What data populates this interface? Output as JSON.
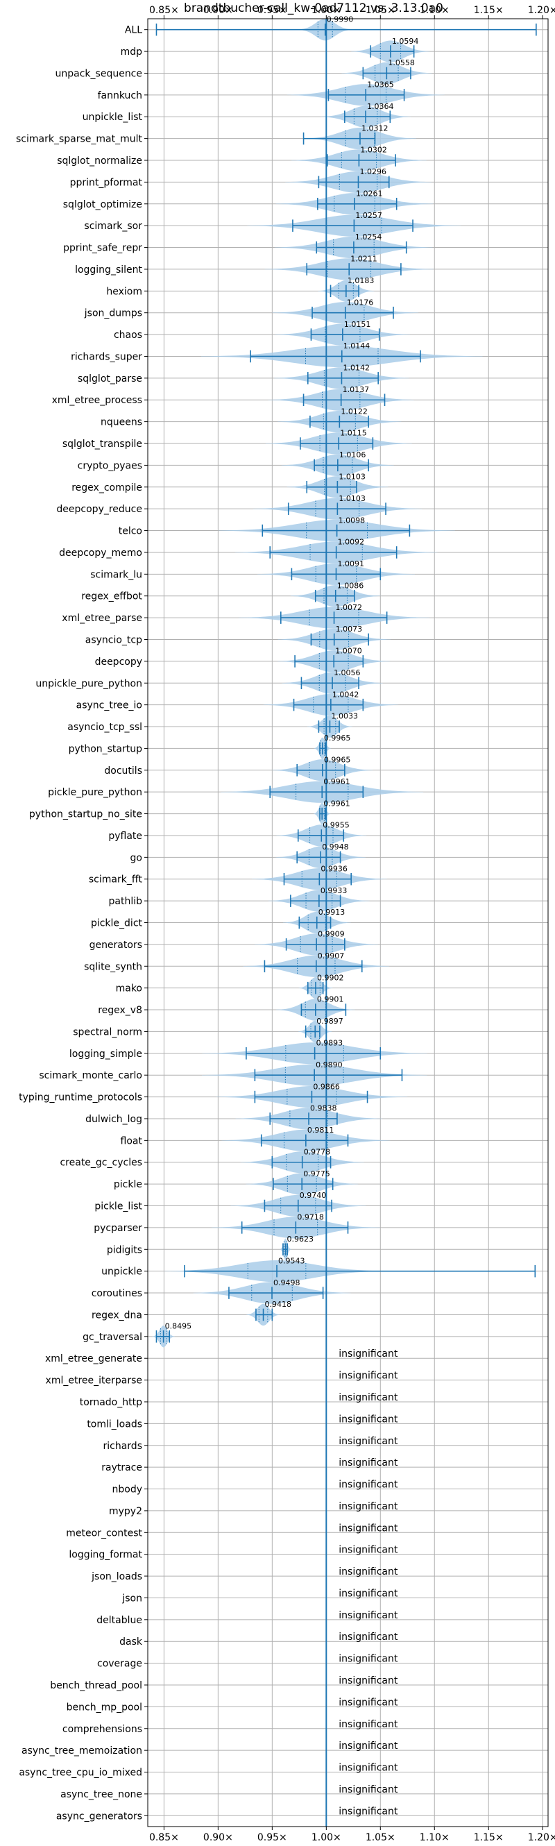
{
  "chart_data": {
    "type": "violin",
    "title": "brandtbucher-call_kw-0ad7112 vs. 3.13.0a0",
    "xlim": [
      0.835,
      1.205
    ],
    "x_ticks": [
      0.85,
      0.9,
      0.95,
      1.0,
      1.05,
      1.1,
      1.15,
      1.2
    ],
    "x_tick_labels": [
      "0.85×",
      "0.90×",
      "0.95×",
      "1.00×",
      "1.05×",
      "1.10×",
      "1.15×",
      "1.20×"
    ],
    "reference_x": 1.0,
    "grid": true,
    "colors": {
      "violin": "#a9cce9",
      "line": "#1f77b4",
      "grid": "#b0b0b0"
    },
    "insignificant_label": "insignificant",
    "significant": [
      {
        "name": "ALL",
        "mean": 0.999,
        "label": "0.9990",
        "min": 0.843,
        "max": 1.194,
        "spread": 0.01
      },
      {
        "name": "mdp",
        "mean": 1.0594,
        "label": "1.0594",
        "min": 1.041,
        "max": 1.081,
        "spread": 0.014
      },
      {
        "name": "unpack_sequence",
        "mean": 1.0558,
        "label": "1.0558",
        "min": 1.034,
        "max": 1.078,
        "spread": 0.016
      },
      {
        "name": "fannkuch",
        "mean": 1.0365,
        "label": "1.0365",
        "min": 1.002,
        "max": 1.072,
        "spread": 0.028
      },
      {
        "name": "unpickle_list",
        "mean": 1.0364,
        "label": "1.0364",
        "min": 1.017,
        "max": 1.059,
        "spread": 0.016
      },
      {
        "name": "scimark_sparse_mat_mult",
        "mean": 1.0312,
        "label": "1.0312",
        "min": 0.979,
        "max": 1.045,
        "spread": 0.02
      },
      {
        "name": "sqlglot_normalize",
        "mean": 1.0302,
        "label": "1.0302",
        "min": 1.001,
        "max": 1.064,
        "spread": 0.024
      },
      {
        "name": "pprint_pformat",
        "mean": 1.0296,
        "label": "1.0296",
        "min": 0.993,
        "max": 1.058,
        "spread": 0.026
      },
      {
        "name": "sqlglot_optimize",
        "mean": 1.0261,
        "label": "1.0261",
        "min": 0.992,
        "max": 1.065,
        "spread": 0.028
      },
      {
        "name": "scimark_sor",
        "mean": 1.0257,
        "label": "1.0257",
        "min": 0.969,
        "max": 1.08,
        "spread": 0.038
      },
      {
        "name": "pprint_safe_repr",
        "mean": 1.0254,
        "label": "1.0254",
        "min": 0.991,
        "max": 1.074,
        "spread": 0.028
      },
      {
        "name": "logging_silent",
        "mean": 1.0211,
        "label": "1.0211",
        "min": 0.982,
        "max": 1.069,
        "spread": 0.03
      },
      {
        "name": "hexiom",
        "mean": 1.0183,
        "label": "1.0183",
        "min": 1.004,
        "max": 1.03,
        "spread": 0.01
      },
      {
        "name": "json_dumps",
        "mean": 1.0176,
        "label": "1.0176",
        "min": 0.987,
        "max": 1.062,
        "spread": 0.026
      },
      {
        "name": "chaos",
        "mean": 1.0151,
        "label": "1.0151",
        "min": 0.986,
        "max": 1.049,
        "spread": 0.024
      },
      {
        "name": "richards_super",
        "mean": 1.0144,
        "label": "1.0144",
        "min": 0.93,
        "max": 1.087,
        "spread": 0.05
      },
      {
        "name": "sqlglot_parse",
        "mean": 1.0142,
        "label": "1.0142",
        "min": 0.983,
        "max": 1.048,
        "spread": 0.024
      },
      {
        "name": "xml_etree_process",
        "mean": 1.0137,
        "label": "1.0137",
        "min": 0.979,
        "max": 1.054,
        "spread": 0.026
      },
      {
        "name": "nqueens",
        "mean": 1.0122,
        "label": "1.0122",
        "min": 0.985,
        "max": 1.039,
        "spread": 0.022
      },
      {
        "name": "sqlglot_transpile",
        "mean": 1.0115,
        "label": "1.0115",
        "min": 0.976,
        "max": 1.043,
        "spread": 0.026
      },
      {
        "name": "crypto_pyaes",
        "mean": 1.0106,
        "label": "1.0106",
        "min": 0.989,
        "max": 1.039,
        "spread": 0.02
      },
      {
        "name": "regex_compile",
        "mean": 1.0103,
        "label": "1.0103",
        "min": 0.982,
        "max": 1.028,
        "spread": 0.018
      },
      {
        "name": "deepcopy_reduce",
        "mean": 1.0103,
        "label": "1.0103",
        "min": 0.965,
        "max": 1.055,
        "spread": 0.03
      },
      {
        "name": "telco",
        "mean": 1.0098,
        "label": "1.0098",
        "min": 0.941,
        "max": 1.077,
        "spread": 0.042
      },
      {
        "name": "deepcopy_memo",
        "mean": 1.0092,
        "label": "1.0092",
        "min": 0.948,
        "max": 1.065,
        "spread": 0.036
      },
      {
        "name": "scimark_lu",
        "mean": 1.0091,
        "label": "1.0091",
        "min": 0.968,
        "max": 1.05,
        "spread": 0.028
      },
      {
        "name": "regex_effbot",
        "mean": 1.0086,
        "label": "1.0086",
        "min": 0.99,
        "max": 1.026,
        "spread": 0.016
      },
      {
        "name": "xml_etree_parse",
        "mean": 1.0072,
        "label": "1.0072",
        "min": 0.958,
        "max": 1.056,
        "spread": 0.034
      },
      {
        "name": "asyncio_tcp",
        "mean": 1.0073,
        "label": "1.0073",
        "min": 0.986,
        "max": 1.039,
        "spread": 0.02
      },
      {
        "name": "deepcopy",
        "mean": 1.007,
        "label": "1.0070",
        "min": 0.971,
        "max": 1.034,
        "spread": 0.02
      },
      {
        "name": "unpickle_pure_python",
        "mean": 1.0056,
        "label": "1.0056",
        "min": 0.977,
        "max": 1.03,
        "spread": 0.018
      },
      {
        "name": "async_tree_io",
        "mean": 1.0042,
        "label": "1.0042",
        "min": 0.97,
        "max": 1.034,
        "spread": 0.024
      },
      {
        "name": "asyncio_tcp_ssl",
        "mean": 1.0033,
        "label": "1.0033",
        "min": 0.993,
        "max": 1.012,
        "spread": 0.008
      },
      {
        "name": "python_startup",
        "mean": 0.9965,
        "label": "0.9965",
        "min": 0.994,
        "max": 0.999,
        "spread": 0.003
      },
      {
        "name": "docutils",
        "mean": 0.9965,
        "label": "0.9965",
        "min": 0.973,
        "max": 1.017,
        "spread": 0.018
      },
      {
        "name": "pickle_pure_python",
        "mean": 0.9961,
        "label": "0.9961",
        "min": 0.948,
        "max": 1.034,
        "spread": 0.036
      },
      {
        "name": "python_startup_no_site",
        "mean": 0.9961,
        "label": "0.9961",
        "min": 0.994,
        "max": 0.999,
        "spread": 0.003
      },
      {
        "name": "pyflate",
        "mean": 0.9955,
        "label": "0.9955",
        "min": 0.974,
        "max": 1.016,
        "spread": 0.016
      },
      {
        "name": "go",
        "mean": 0.9948,
        "label": "0.9948",
        "min": 0.973,
        "max": 1.013,
        "spread": 0.016
      },
      {
        "name": "scimark_fft",
        "mean": 0.9936,
        "label": "0.9936",
        "min": 0.961,
        "max": 1.023,
        "spread": 0.024
      },
      {
        "name": "pathlib",
        "mean": 0.9933,
        "label": "0.9933",
        "min": 0.967,
        "max": 1.013,
        "spread": 0.018
      },
      {
        "name": "pickle_dict",
        "mean": 0.9913,
        "label": "0.9913",
        "min": 0.975,
        "max": 1.004,
        "spread": 0.012
      },
      {
        "name": "generators",
        "mean": 0.9909,
        "label": "0.9909",
        "min": 0.963,
        "max": 1.017,
        "spread": 0.022
      },
      {
        "name": "sqlite_synth",
        "mean": 0.9907,
        "label": "0.9907",
        "min": 0.943,
        "max": 1.033,
        "spread": 0.026
      },
      {
        "name": "mako",
        "mean": 0.9902,
        "label": "0.9902",
        "min": 0.983,
        "max": 0.997,
        "spread": 0.006
      },
      {
        "name": "regex_v8",
        "mean": 0.9901,
        "label": "0.9901",
        "min": 0.977,
        "max": 1.018,
        "spread": 0.014
      },
      {
        "name": "spectral_norm",
        "mean": 0.9897,
        "label": "0.9897",
        "min": 0.981,
        "max": 0.994,
        "spread": 0.006
      },
      {
        "name": "logging_simple",
        "mean": 0.9893,
        "label": "0.9893",
        "min": 0.926,
        "max": 1.05,
        "spread": 0.04
      },
      {
        "name": "scimark_monte_carlo",
        "mean": 0.989,
        "label": "0.9890",
        "min": 0.934,
        "max": 1.07,
        "spread": 0.04
      },
      {
        "name": "typing_runtime_protocols",
        "mean": 0.9866,
        "label": "0.9866",
        "min": 0.934,
        "max": 1.038,
        "spread": 0.034
      },
      {
        "name": "dulwich_log",
        "mean": 0.9838,
        "label": "0.9838",
        "min": 0.948,
        "max": 1.01,
        "spread": 0.026
      },
      {
        "name": "float",
        "mean": 0.9811,
        "label": "0.9811",
        "min": 0.94,
        "max": 1.02,
        "spread": 0.03
      },
      {
        "name": "create_gc_cycles",
        "mean": 0.9778,
        "label": "0.9778",
        "min": 0.95,
        "max": 1.004,
        "spread": 0.022
      },
      {
        "name": "pickle",
        "mean": 0.9775,
        "label": "0.9775",
        "min": 0.951,
        "max": 1.006,
        "spread": 0.02
      },
      {
        "name": "pickle_list",
        "mean": 0.974,
        "label": "0.9740",
        "min": 0.943,
        "max": 1.005,
        "spread": 0.024
      },
      {
        "name": "pycparser",
        "mean": 0.9718,
        "label": "0.9718",
        "min": 0.922,
        "max": 1.02,
        "spread": 0.03
      },
      {
        "name": "pidigits",
        "mean": 0.9623,
        "label": "0.9623",
        "min": 0.96,
        "max": 0.964,
        "spread": 0.002
      },
      {
        "name": "unpickle",
        "mean": 0.9543,
        "label": "0.9543",
        "min": 0.869,
        "max": 1.193,
        "spread": 0.04
      },
      {
        "name": "coroutines",
        "mean": 0.9498,
        "label": "0.9498",
        "min": 0.91,
        "max": 0.997,
        "spread": 0.028
      },
      {
        "name": "regex_dna",
        "mean": 0.9418,
        "label": "0.9418",
        "min": 0.935,
        "max": 0.95,
        "spread": 0.006
      },
      {
        "name": "gc_traversal",
        "mean": 0.8495,
        "label": "0.8495",
        "min": 0.843,
        "max": 0.855,
        "spread": 0.004
      }
    ],
    "insignificant": [
      "xml_etree_generate",
      "xml_etree_iterparse",
      "tornado_http",
      "tomli_loads",
      "richards",
      "raytrace",
      "nbody",
      "mypy2",
      "meteor_contest",
      "logging_format",
      "json_loads",
      "json",
      "deltablue",
      "dask",
      "coverage",
      "bench_thread_pool",
      "bench_mp_pool",
      "comprehensions",
      "async_tree_memoization",
      "async_tree_cpu_io_mixed",
      "async_tree_none",
      "async_generators"
    ]
  }
}
